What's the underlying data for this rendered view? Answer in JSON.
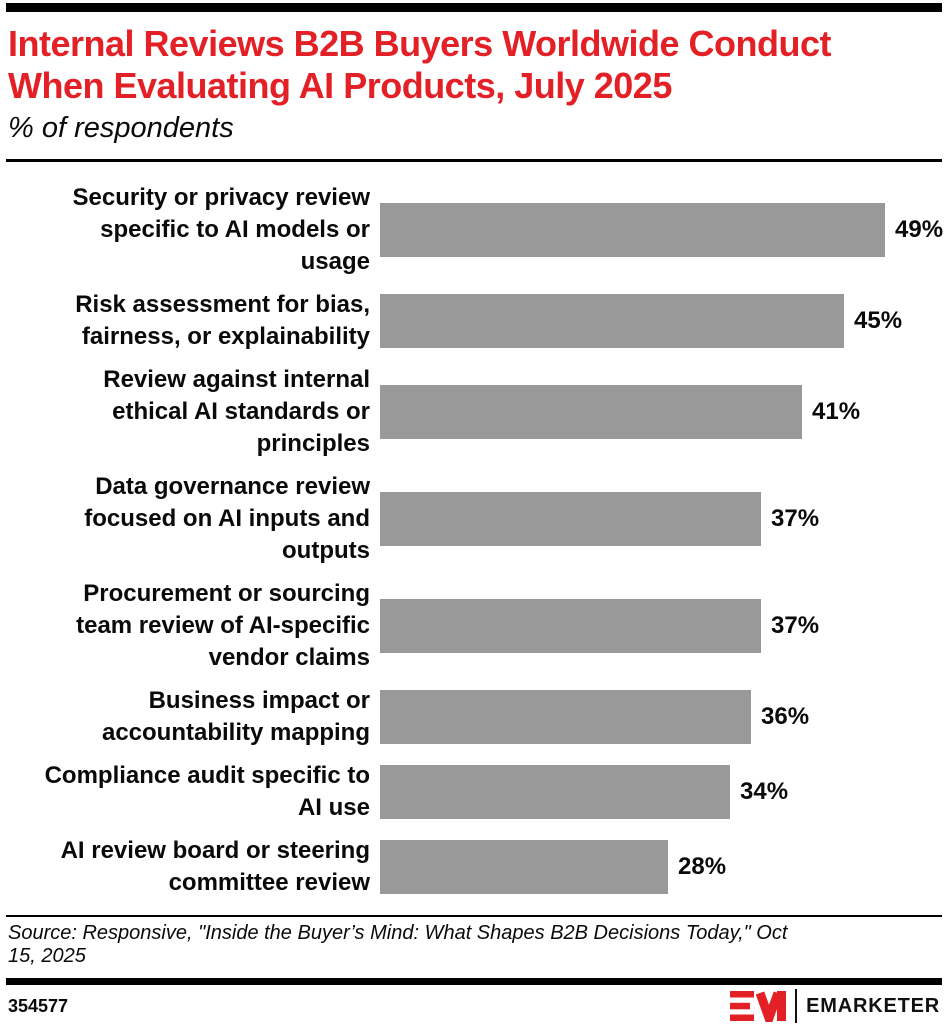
{
  "header": {
    "title": "Internal Reviews B2B Buyers Worldwide Conduct\nWhen Evaluating AI Products, July 2025",
    "subtitle": "% of respondents"
  },
  "chart_data": {
    "type": "bar",
    "orientation": "horizontal",
    "title": "Internal Reviews B2B Buyers Worldwide Conduct When Evaluating AI Products, July 2025",
    "xlabel": "% of respondents",
    "ylabel": "",
    "xlim": [
      0,
      50
    ],
    "grid": false,
    "value_suffix": "%",
    "bar_color": "#999999",
    "categories": [
      "Security or privacy review specific to AI models or usage",
      "Risk assessment for bias, fairness, or explainability",
      "Review against internal ethical AI standards or principles",
      "Data governance review focused on AI inputs and outputs",
      "Procurement or sourcing team review of AI-specific vendor claims",
      "Business impact or accountability mapping",
      "Compliance audit specific to AI use",
      "AI review board or steering committee review"
    ],
    "category_display": [
      "Security or privacy review\nspecific to AI models or\nusage",
      "Risk assessment for bias,\nfairness, or explainability",
      "Review against internal\nethical AI standards or\nprinciples",
      "Data governance review\nfocused on AI inputs and\noutputs",
      "Procurement or sourcing\nteam review of AI-specific\nvendor claims",
      "Business impact or\naccountability mapping",
      "Compliance audit specific to\nAI use",
      "AI review board or steering\ncommittee review"
    ],
    "values": [
      49,
      45,
      41,
      37,
      37,
      36,
      34,
      28
    ]
  },
  "source": {
    "text": "Source: Responsive, \"Inside the Buyer’s Mind: What Shapes B2B Decisions Today,\" Oct\n15, 2025"
  },
  "footer": {
    "chart_id": "354577",
    "brand": "EMARKETER"
  },
  "colors": {
    "accent_red": "#e32026",
    "bar_gray": "#999999",
    "rule_black": "#000000"
  }
}
